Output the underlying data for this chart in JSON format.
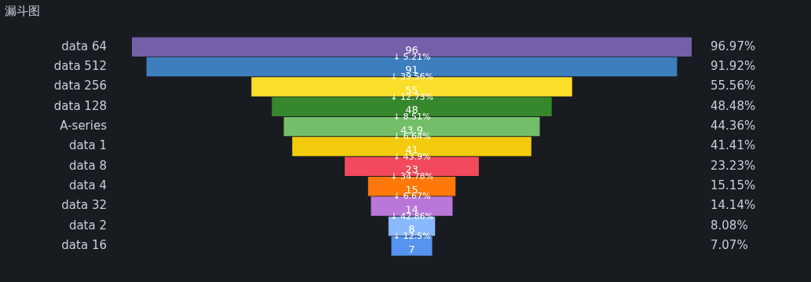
{
  "chart_data": {
    "type": "other",
    "title": "漏斗图",
    "categories": [
      "data 64",
      "data 512",
      "data 256",
      "data 128",
      "A-series",
      "data 1",
      "data 8",
      "data 4",
      "data 32",
      "data 2",
      "data 16"
    ],
    "values": [
      96,
      91,
      55,
      48,
      43.9,
      41,
      23,
      15,
      14,
      8,
      7
    ],
    "colors": [
      "#7360a8",
      "#3d7ebf",
      "#fade2a",
      "#37872d",
      "#73bf69",
      "#f2cc0c",
      "#f2495c",
      "#ff780a",
      "#b877d9",
      "#8ab8ff",
      "#5794f2"
    ],
    "data_labels": true,
    "annotations": [
      {
        "text": "96.97%",
        "y": "data 64"
      },
      {
        "text": "91.92%",
        "y": "data 512"
      },
      {
        "text": "55.56%",
        "y": "data 256"
      },
      {
        "text": "48.48%",
        "y": "data 128"
      },
      {
        "text": "44.36%",
        "y": "A-series"
      },
      {
        "text": "41.41%",
        "y": "data 1"
      },
      {
        "text": "23.23%",
        "y": "data 8"
      },
      {
        "text": "15.15%",
        "y": "data 4"
      },
      {
        "text": "14.14%",
        "y": "data 32"
      },
      {
        "text": "8.08%",
        "y": "data 2"
      },
      {
        "text": "7.07%",
        "y": "data 16"
      },
      {
        "text": "↓ 5.21%",
        "y": "data 512"
      },
      {
        "text": "↓ 39.56%",
        "y": "data 256"
      },
      {
        "text": "↓ 12.73%",
        "y": "data 128"
      },
      {
        "text": "↓ 8.51%",
        "y": "A-series"
      },
      {
        "text": "↓ 6.64%",
        "y": "data 1"
      },
      {
        "text": "↓ 43.9%",
        "y": "data 8"
      },
      {
        "text": "↓ 34.78%",
        "y": "data 4"
      },
      {
        "text": "↓ 6.67%",
        "y": "data 32"
      },
      {
        "text": "↓ 42.86%",
        "y": "data 2"
      },
      {
        "text": "↓ 12.5%",
        "y": "data 16"
      }
    ]
  }
}
